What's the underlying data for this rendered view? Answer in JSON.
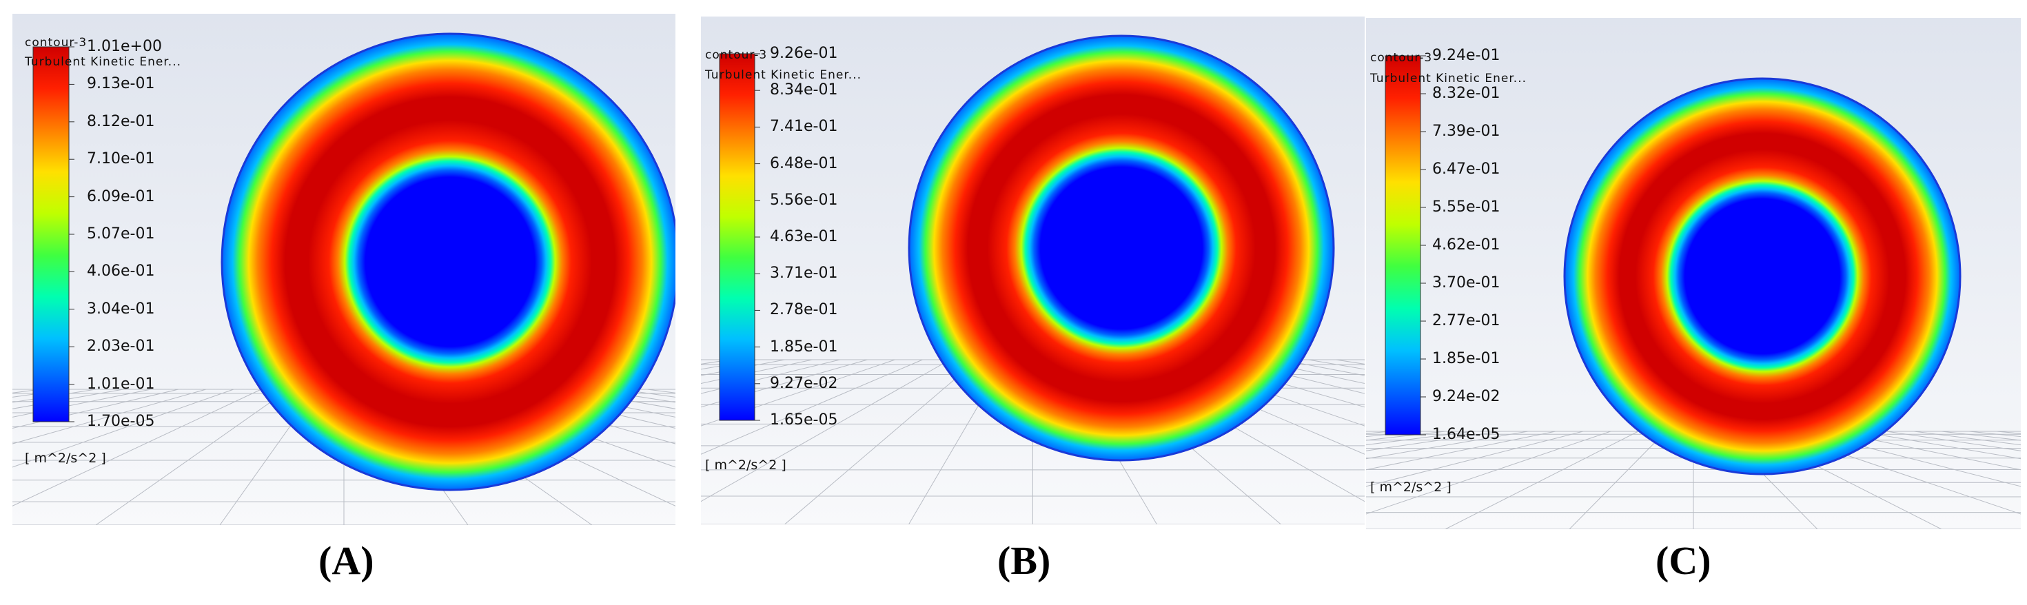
{
  "panels": [
    {
      "id": "A",
      "caption": "(A)",
      "contour_name": "contour-3",
      "variable": "Turbulent Kinetic Ener...",
      "units": "[ m^2/s^2 ]",
      "ticks": [
        "1.01e+00",
        "9.13e-01",
        "8.12e-01",
        "7.10e-01",
        "6.09e-01",
        "5.07e-01",
        "4.06e-01",
        "3.04e-01",
        "2.03e-01",
        "1.01e-01",
        "1.70e-05"
      ]
    },
    {
      "id": "B",
      "caption": "(B)",
      "contour_name": "contour-3",
      "variable": "Turbulent Kinetic Ener...",
      "units": "[ m^2/s^2 ]",
      "ticks": [
        "9.26e-01",
        "8.34e-01",
        "7.41e-01",
        "6.48e-01",
        "5.56e-01",
        "4.63e-01",
        "3.71e-01",
        "2.78e-01",
        "1.85e-01",
        "9.27e-02",
        "1.65e-05"
      ]
    },
    {
      "id": "C",
      "caption": "(C)",
      "contour_name": "contour-3",
      "variable": "Turbulent Kinetic Ener...",
      "units": "[ m^2/s^2 ]",
      "ticks": [
        "9.24e-01",
        "8.32e-01",
        "7.39e-01",
        "6.47e-01",
        "5.55e-01",
        "4.62e-01",
        "3.70e-01",
        "2.77e-01",
        "1.85e-01",
        "9.24e-02",
        "1.64e-05"
      ]
    }
  ],
  "colors": {
    "colormap": [
      "#0000ff",
      "#0060ff",
      "#00c0ff",
      "#00ffb0",
      "#40ff40",
      "#c0ff00",
      "#ffe000",
      "#ff8000",
      "#ff2000",
      "#d00000"
    ],
    "background_top": "#dfe4ee",
    "background_bottom": "#f8f9fb"
  }
}
